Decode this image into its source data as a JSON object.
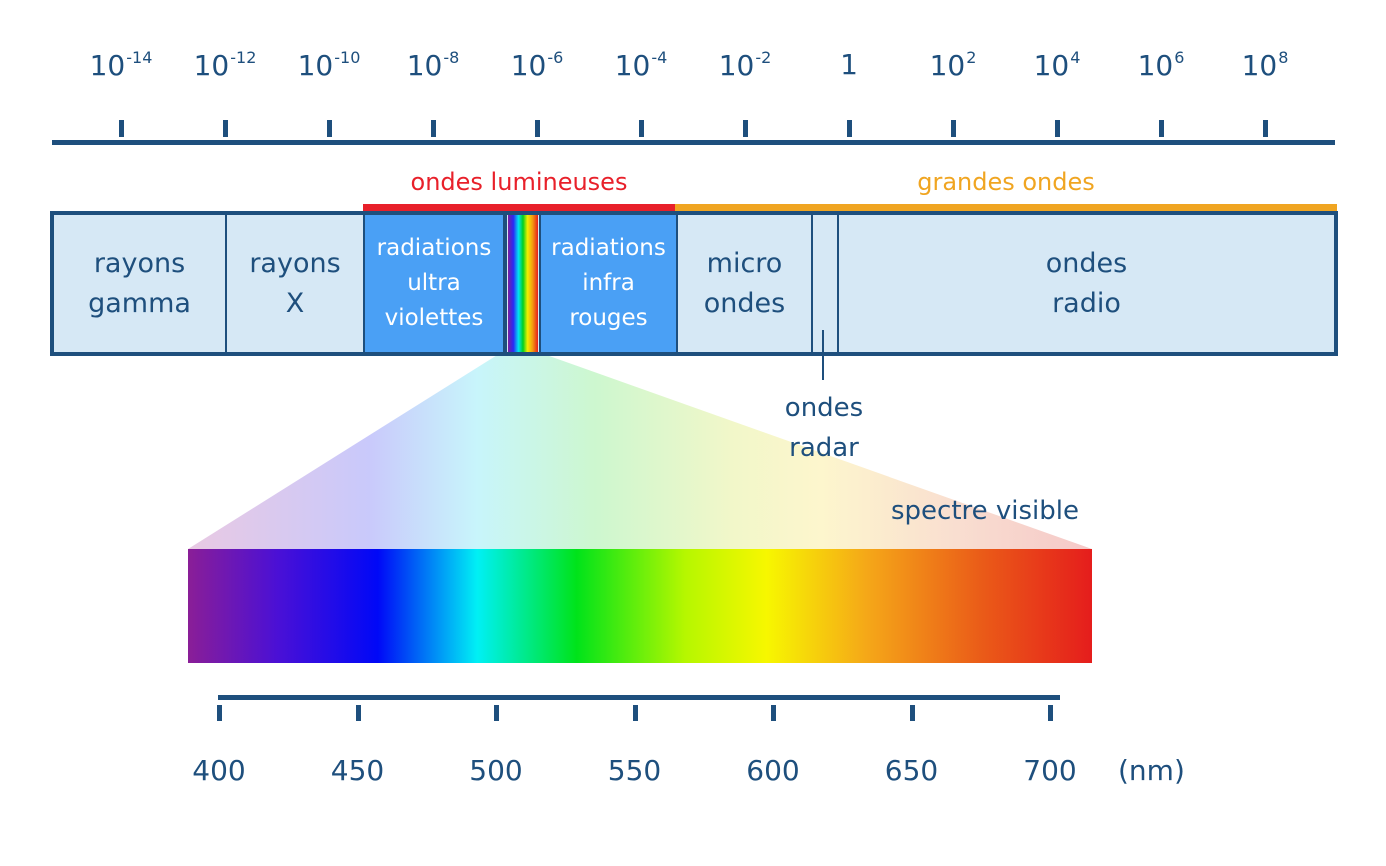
{
  "top_scale": {
    "ticks": [
      {
        "base": "10",
        "exp": "-14"
      },
      {
        "base": "10",
        "exp": "-12"
      },
      {
        "base": "10",
        "exp": "-10"
      },
      {
        "base": "10",
        "exp": "-8"
      },
      {
        "base": "10",
        "exp": "-6"
      },
      {
        "base": "10",
        "exp": "-4"
      },
      {
        "base": "10",
        "exp": "-2"
      },
      {
        "base": "1",
        "exp": ""
      },
      {
        "base": "10",
        "exp": "2"
      },
      {
        "base": "10",
        "exp": "4"
      },
      {
        "base": "10",
        "exp": "6"
      },
      {
        "base": "10",
        "exp": "8"
      }
    ]
  },
  "ranges": {
    "light_waves": {
      "label": "ondes lumineuses",
      "color": "#e8202a"
    },
    "long_waves": {
      "label": "grandes ondes",
      "color": "#f0a521"
    }
  },
  "bands": {
    "gamma": "rayons\ngamma",
    "xray": "rayons\nX",
    "uv": "radiations\nultra\nviolettes",
    "ir": "radiations\ninfra\nrouges",
    "micro": "micro\nondes",
    "radio": "ondes\nradio"
  },
  "radar_label": "ondes\nradar",
  "visible_label": "spectre visible",
  "bottom_scale": {
    "ticks": [
      "400",
      "450",
      "500",
      "550",
      "600",
      "650",
      "700"
    ],
    "unit": "(nm)"
  },
  "colors": {
    "text": "#1e4f7d",
    "band_bg": "#d6e8f5",
    "band_highlight": "#4aa0f5"
  }
}
